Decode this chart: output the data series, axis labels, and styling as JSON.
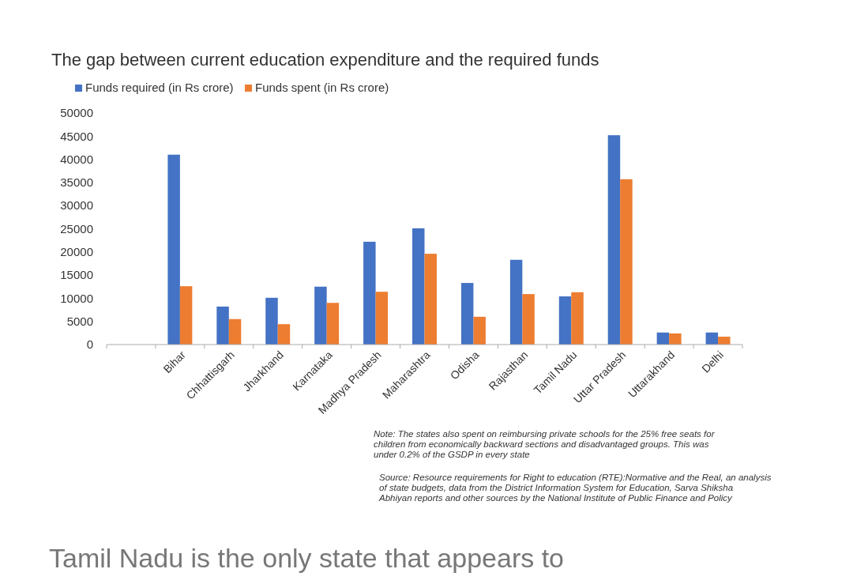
{
  "chart_data": {
    "type": "bar",
    "title": "The gap between current education expenditure and the required funds",
    "categories": [
      null,
      "Bihar",
      "Chhattisgarh",
      "Jharkhand",
      "Karnataka",
      "Madhya Pradesh",
      "Maharashtra",
      "Odisha",
      "Rajasthan",
      "Tamil Nadu",
      "Uttar Pradesh",
      "Uttarakhand",
      "Delhi"
    ],
    "series": [
      {
        "name": "Funds required (in Rs crore)",
        "color": "#4472c4",
        "values": [
          null,
          41000,
          8200,
          10100,
          12500,
          22200,
          25100,
          13300,
          18300,
          10400,
          45200,
          2600,
          2600
        ]
      },
      {
        "name": "Funds spent (in Rs crore)",
        "color": "#ed7d31",
        "values": [
          null,
          12600,
          5500,
          4400,
          9000,
          11400,
          19600,
          6000,
          10900,
          11300,
          35700,
          2400,
          1700
        ]
      }
    ],
    "ylim": [
      0,
      50000
    ],
    "yticks": [
      0,
      5000,
      10000,
      15000,
      20000,
      25000,
      30000,
      35000,
      40000,
      45000,
      50000
    ],
    "grid": false,
    "legend": "top left",
    "annotations": [
      "Note: The states also spent on reimbursing private schools for the 25% free seats for\nchildren from economically backward sections and disadvantaged groups. This was\nunder 0.2%  of the GSDP in every state",
      "Source: Resource requirements for Right to education (RTE):Normative and the Real, an analysis\nof state budgets, data from the District Information System for Education, Sarva Shiksha\nAbhiyan reports and other sources by the National Institute of Public Finance and Policy",
      "Tamil Nadu is the only state that appears to"
    ]
  }
}
